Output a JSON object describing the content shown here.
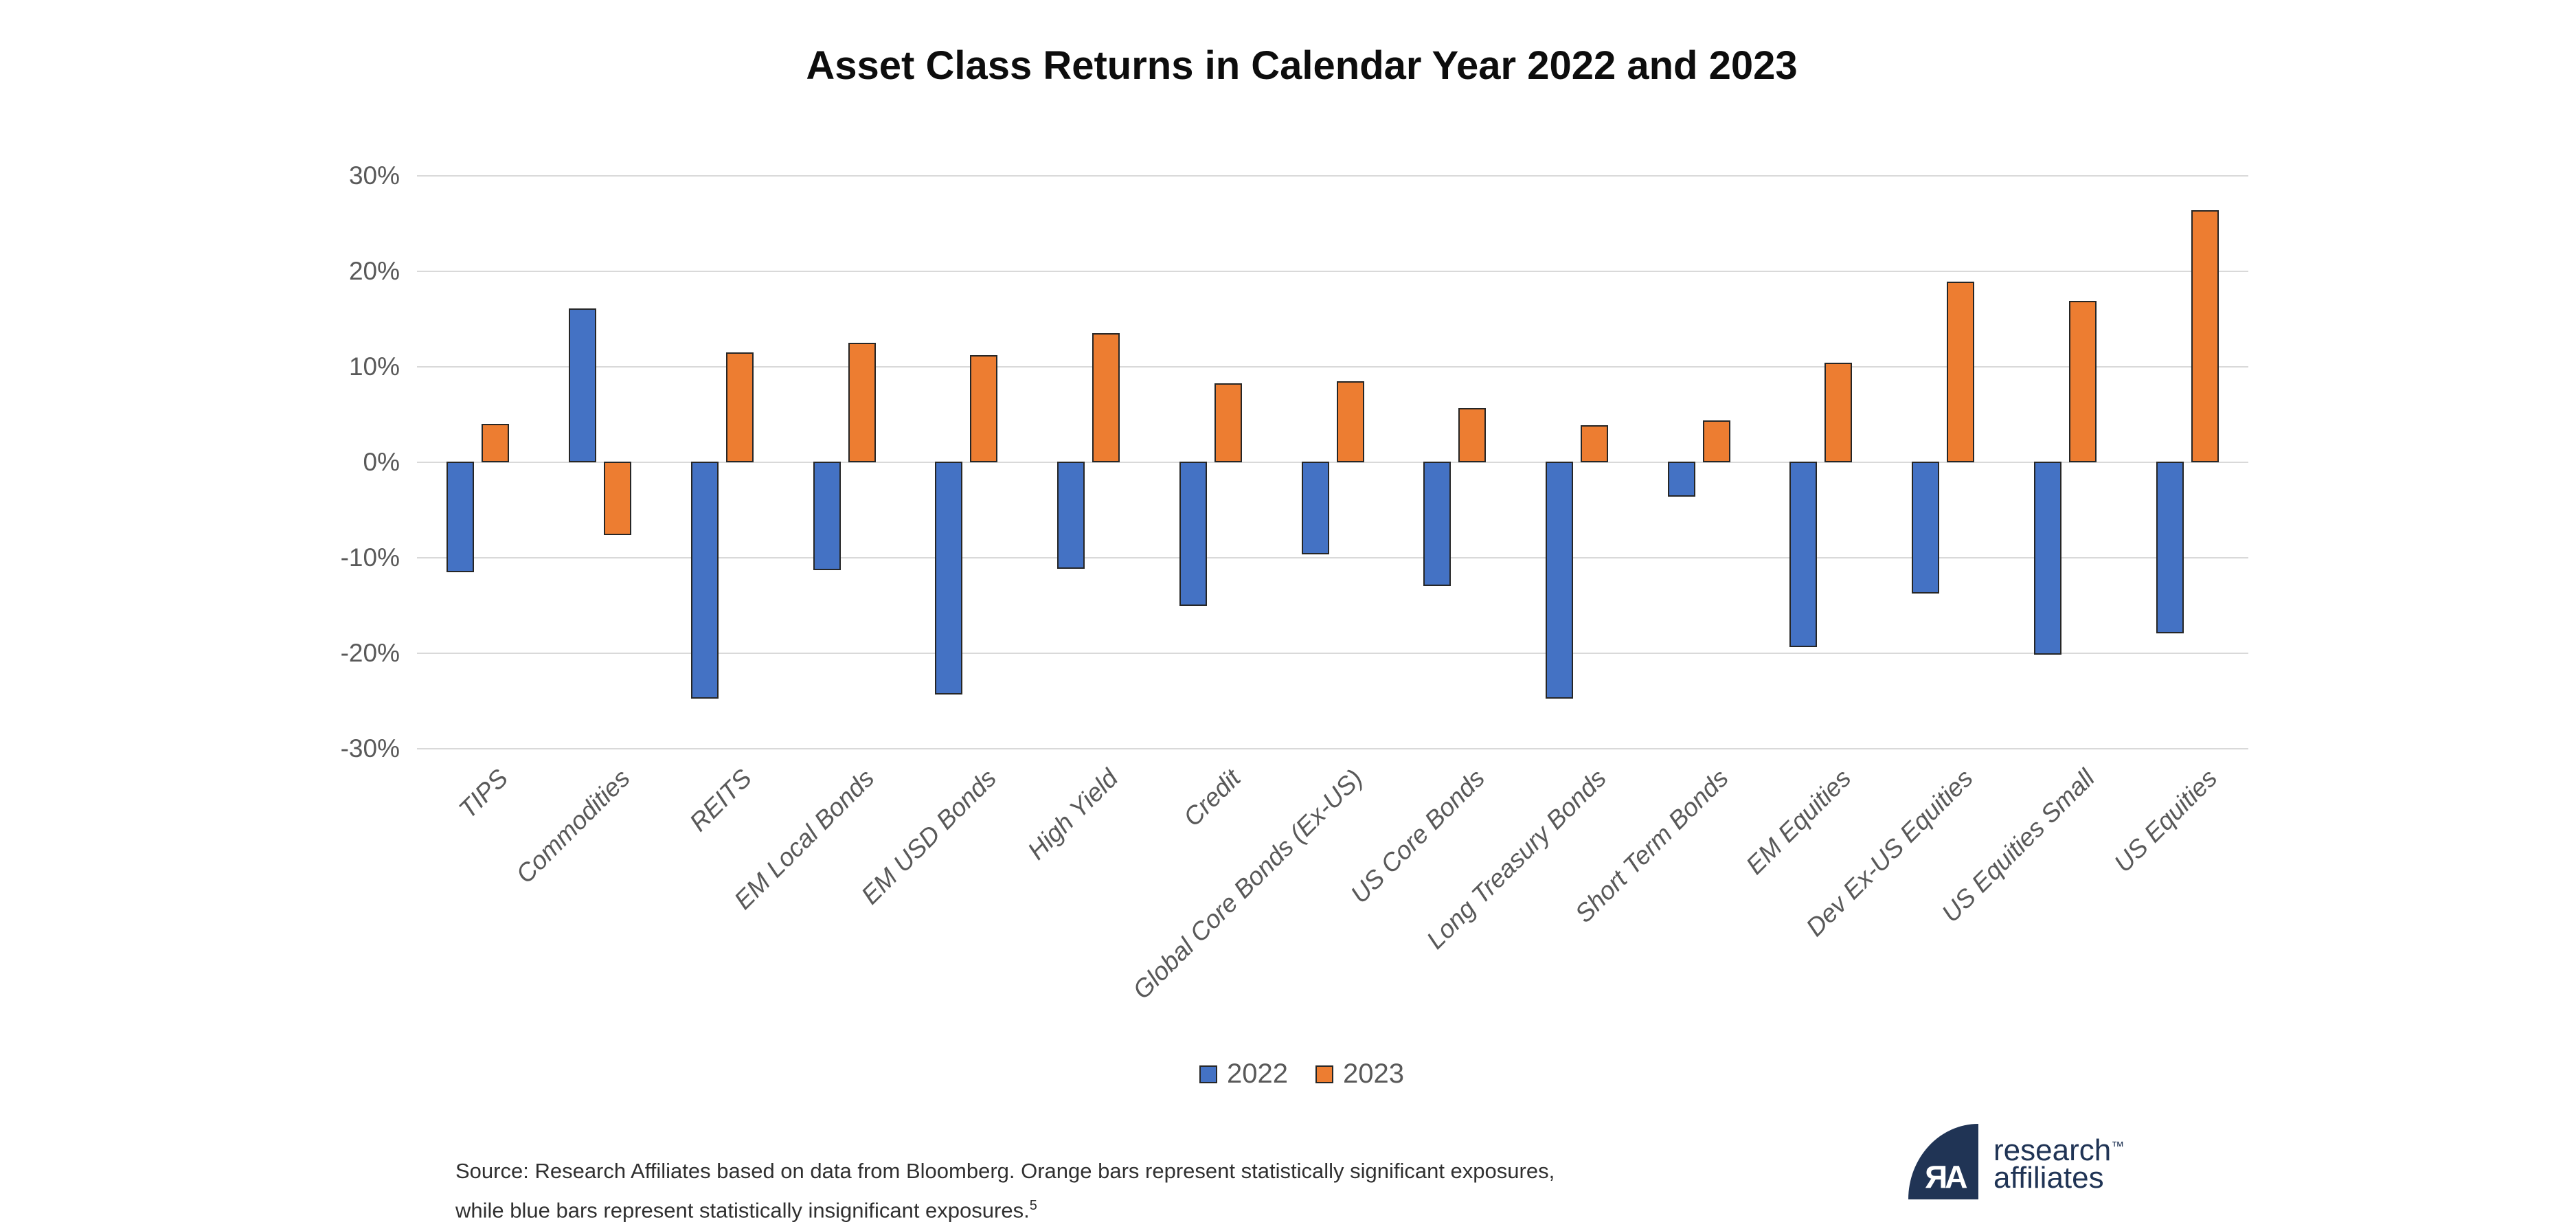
{
  "title": "Asset Class Returns in Calendar Year 2022 and 2023",
  "chart_data": {
    "type": "bar",
    "title": "Asset Class Returns in Calendar Year 2022 and 2023",
    "categories": [
      "TIPS",
      "Commodities",
      "REITS",
      "EM Local Bonds",
      "EM USD Bonds",
      "High Yield",
      "Credit",
      "Global Core Bonds (Ex-US)",
      "US Core Bonds",
      "Long Treasury Bonds",
      "Short Term Bonds",
      "EM Equities",
      "Dev Ex-US Equities",
      "US Equities Small",
      "US Equities"
    ],
    "series": [
      {
        "name": "2022",
        "color": "#4472C4",
        "values": [
          -11.6,
          16.1,
          -24.8,
          -11.4,
          -24.4,
          -11.2,
          -15.1,
          -9.7,
          -13.0,
          -24.8,
          -3.7,
          -19.4,
          -13.8,
          -20.2,
          -18.0
        ]
      },
      {
        "name": "2023",
        "color": "#ED7D31",
        "values": [
          4.0,
          -7.7,
          11.5,
          12.5,
          11.2,
          13.5,
          8.3,
          8.5,
          5.7,
          3.9,
          4.4,
          10.4,
          18.9,
          16.9,
          26.4
        ]
      }
    ],
    "xlabel": "",
    "ylabel": "",
    "ylim": [
      -30,
      30
    ],
    "ytick_step": 10,
    "yticks": [
      "30%",
      "20%",
      "10%",
      "0%",
      "-10%",
      "-20%",
      "-30%"
    ],
    "grid": true,
    "legend_position": "bottom-center",
    "gridline_color": "#D9D9D9",
    "axis_label_color": "#595959",
    "bar_border_color": "#262626"
  },
  "legend": {
    "items": [
      {
        "label": "2022",
        "color": "#4472C4"
      },
      {
        "label": "2023",
        "color": "#ED7D31"
      }
    ]
  },
  "footnote": {
    "line1": "Source: Research Affiliates based on data from Bloomberg. Orange bars represent statistically significant exposures,",
    "line2": "while blue bars represent statistically insignificant exposures.",
    "superscript": "5"
  },
  "logo": {
    "monogram": "ЯA",
    "word1": "research",
    "trademark": "™",
    "word2": "affiliates",
    "color": "#203455"
  }
}
